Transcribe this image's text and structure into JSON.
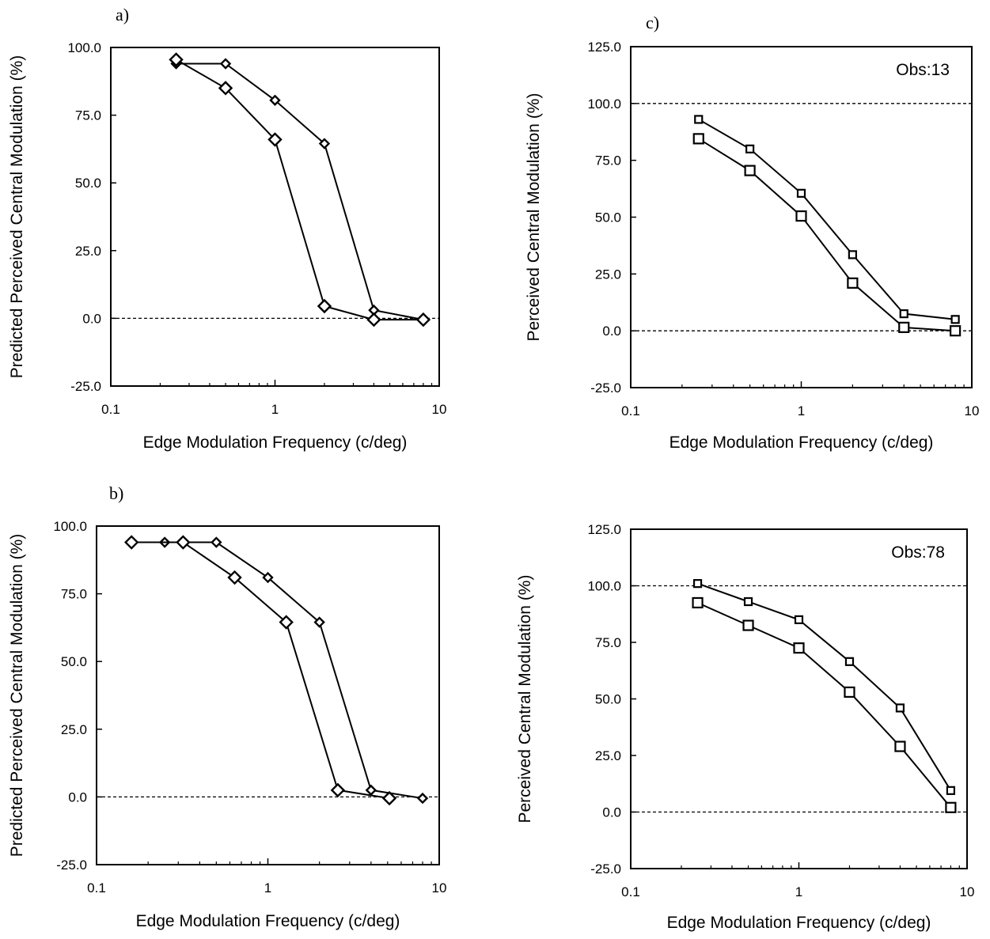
{
  "chart_data": [
    {
      "type": "line",
      "panel_label": "a)",
      "annotation": "",
      "xlabel": "Edge Modulation Frequency (c/deg)",
      "ylabel": "Predicted Perceived Central Modulation (%)",
      "xscale": "log",
      "xlim": [
        0.1,
        10
      ],
      "xticks": [
        "0.1",
        "1",
        "10"
      ],
      "ylim": [
        -25,
        100
      ],
      "yticks": [
        "-25.0",
        "0.0",
        "25.0",
        "50.0",
        "75.0",
        "100.0"
      ],
      "reference_lines": [
        0
      ],
      "grid": false,
      "legend": "none",
      "series": [
        {
          "marker": "small-diamond",
          "x": [
            0.25,
            0.5,
            1,
            2,
            4,
            8
          ],
          "y": [
            94,
            94,
            80.5,
            64.5,
            3,
            -0.5
          ]
        },
        {
          "marker": "large-diamond",
          "x": [
            0.25,
            0.5,
            1,
            2,
            4,
            8
          ],
          "y": [
            95.5,
            85,
            66,
            4.5,
            -0.5,
            -0.5
          ]
        }
      ]
    },
    {
      "type": "line",
      "panel_label": "b)",
      "annotation": "",
      "xlabel": "Edge Modulation Frequency (c/deg)",
      "ylabel": "Predicted Perceived Central Modulation (%)",
      "xscale": "log",
      "xlim": [
        0.1,
        10
      ],
      "xticks": [
        "0.1",
        "1",
        "10"
      ],
      "ylim": [
        -25,
        100
      ],
      "yticks": [
        "-25.0",
        "0.0",
        "25.0",
        "50.0",
        "75.0",
        "100.0"
      ],
      "reference_lines": [
        0
      ],
      "grid": false,
      "legend": "none",
      "series": [
        {
          "marker": "small-diamond",
          "x": [
            0.25,
            0.5,
            1,
            2,
            4,
            8
          ],
          "y": [
            94,
            94,
            81,
            64.5,
            2.5,
            -0.5
          ]
        },
        {
          "marker": "large-diamond",
          "x": [
            0.16,
            0.32,
            0.64,
            1.28,
            2.56,
            5.12
          ],
          "y": [
            94,
            94,
            81,
            64.5,
            2.5,
            -0.5
          ]
        }
      ]
    },
    {
      "type": "line",
      "panel_label": "c)",
      "annotation": "Obs:13",
      "xlabel": "Edge Modulation Frequency (c/deg)",
      "ylabel": "Perceived Central Modulation (%)",
      "xscale": "log",
      "xlim": [
        0.1,
        10
      ],
      "xticks": [
        "0.1",
        "1",
        "10"
      ],
      "ylim": [
        -25,
        125
      ],
      "yticks": [
        "-25.0",
        "0.0",
        "25.0",
        "50.0",
        "75.0",
        "100.0",
        "125.0"
      ],
      "reference_lines": [
        0,
        100
      ],
      "grid": false,
      "legend": "none",
      "series": [
        {
          "marker": "small-square",
          "x": [
            0.25,
            0.5,
            1,
            2,
            4,
            8
          ],
          "y": [
            93,
            80,
            60.5,
            33.5,
            7.5,
            5
          ]
        },
        {
          "marker": "large-square",
          "x": [
            0.25,
            0.5,
            1,
            2,
            4,
            8
          ],
          "y": [
            84.5,
            70.5,
            50.5,
            21,
            1.5,
            0
          ]
        }
      ]
    },
    {
      "type": "line",
      "panel_label": "",
      "annotation": "Obs:78",
      "xlabel": "Edge Modulation Frequency (c/deg)",
      "ylabel": "Perceived Central Modulation (%)",
      "xscale": "log",
      "xlim": [
        0.1,
        10
      ],
      "xticks": [
        "0.1",
        "1",
        "10"
      ],
      "ylim": [
        -25,
        125
      ],
      "yticks": [
        "-25.0",
        "0.0",
        "25.0",
        "50.0",
        "75.0",
        "100.0",
        "125.0"
      ],
      "reference_lines": [
        0,
        100
      ],
      "grid": false,
      "legend": "none",
      "series": [
        {
          "marker": "small-square",
          "x": [
            0.25,
            0.5,
            1,
            2,
            4,
            8
          ],
          "y": [
            101,
            93,
            85,
            66.5,
            46,
            9.5
          ]
        },
        {
          "marker": "large-square",
          "x": [
            0.25,
            0.5,
            1,
            2,
            4,
            8
          ],
          "y": [
            92.5,
            82.5,
            72.5,
            53,
            29,
            2
          ]
        }
      ]
    }
  ]
}
